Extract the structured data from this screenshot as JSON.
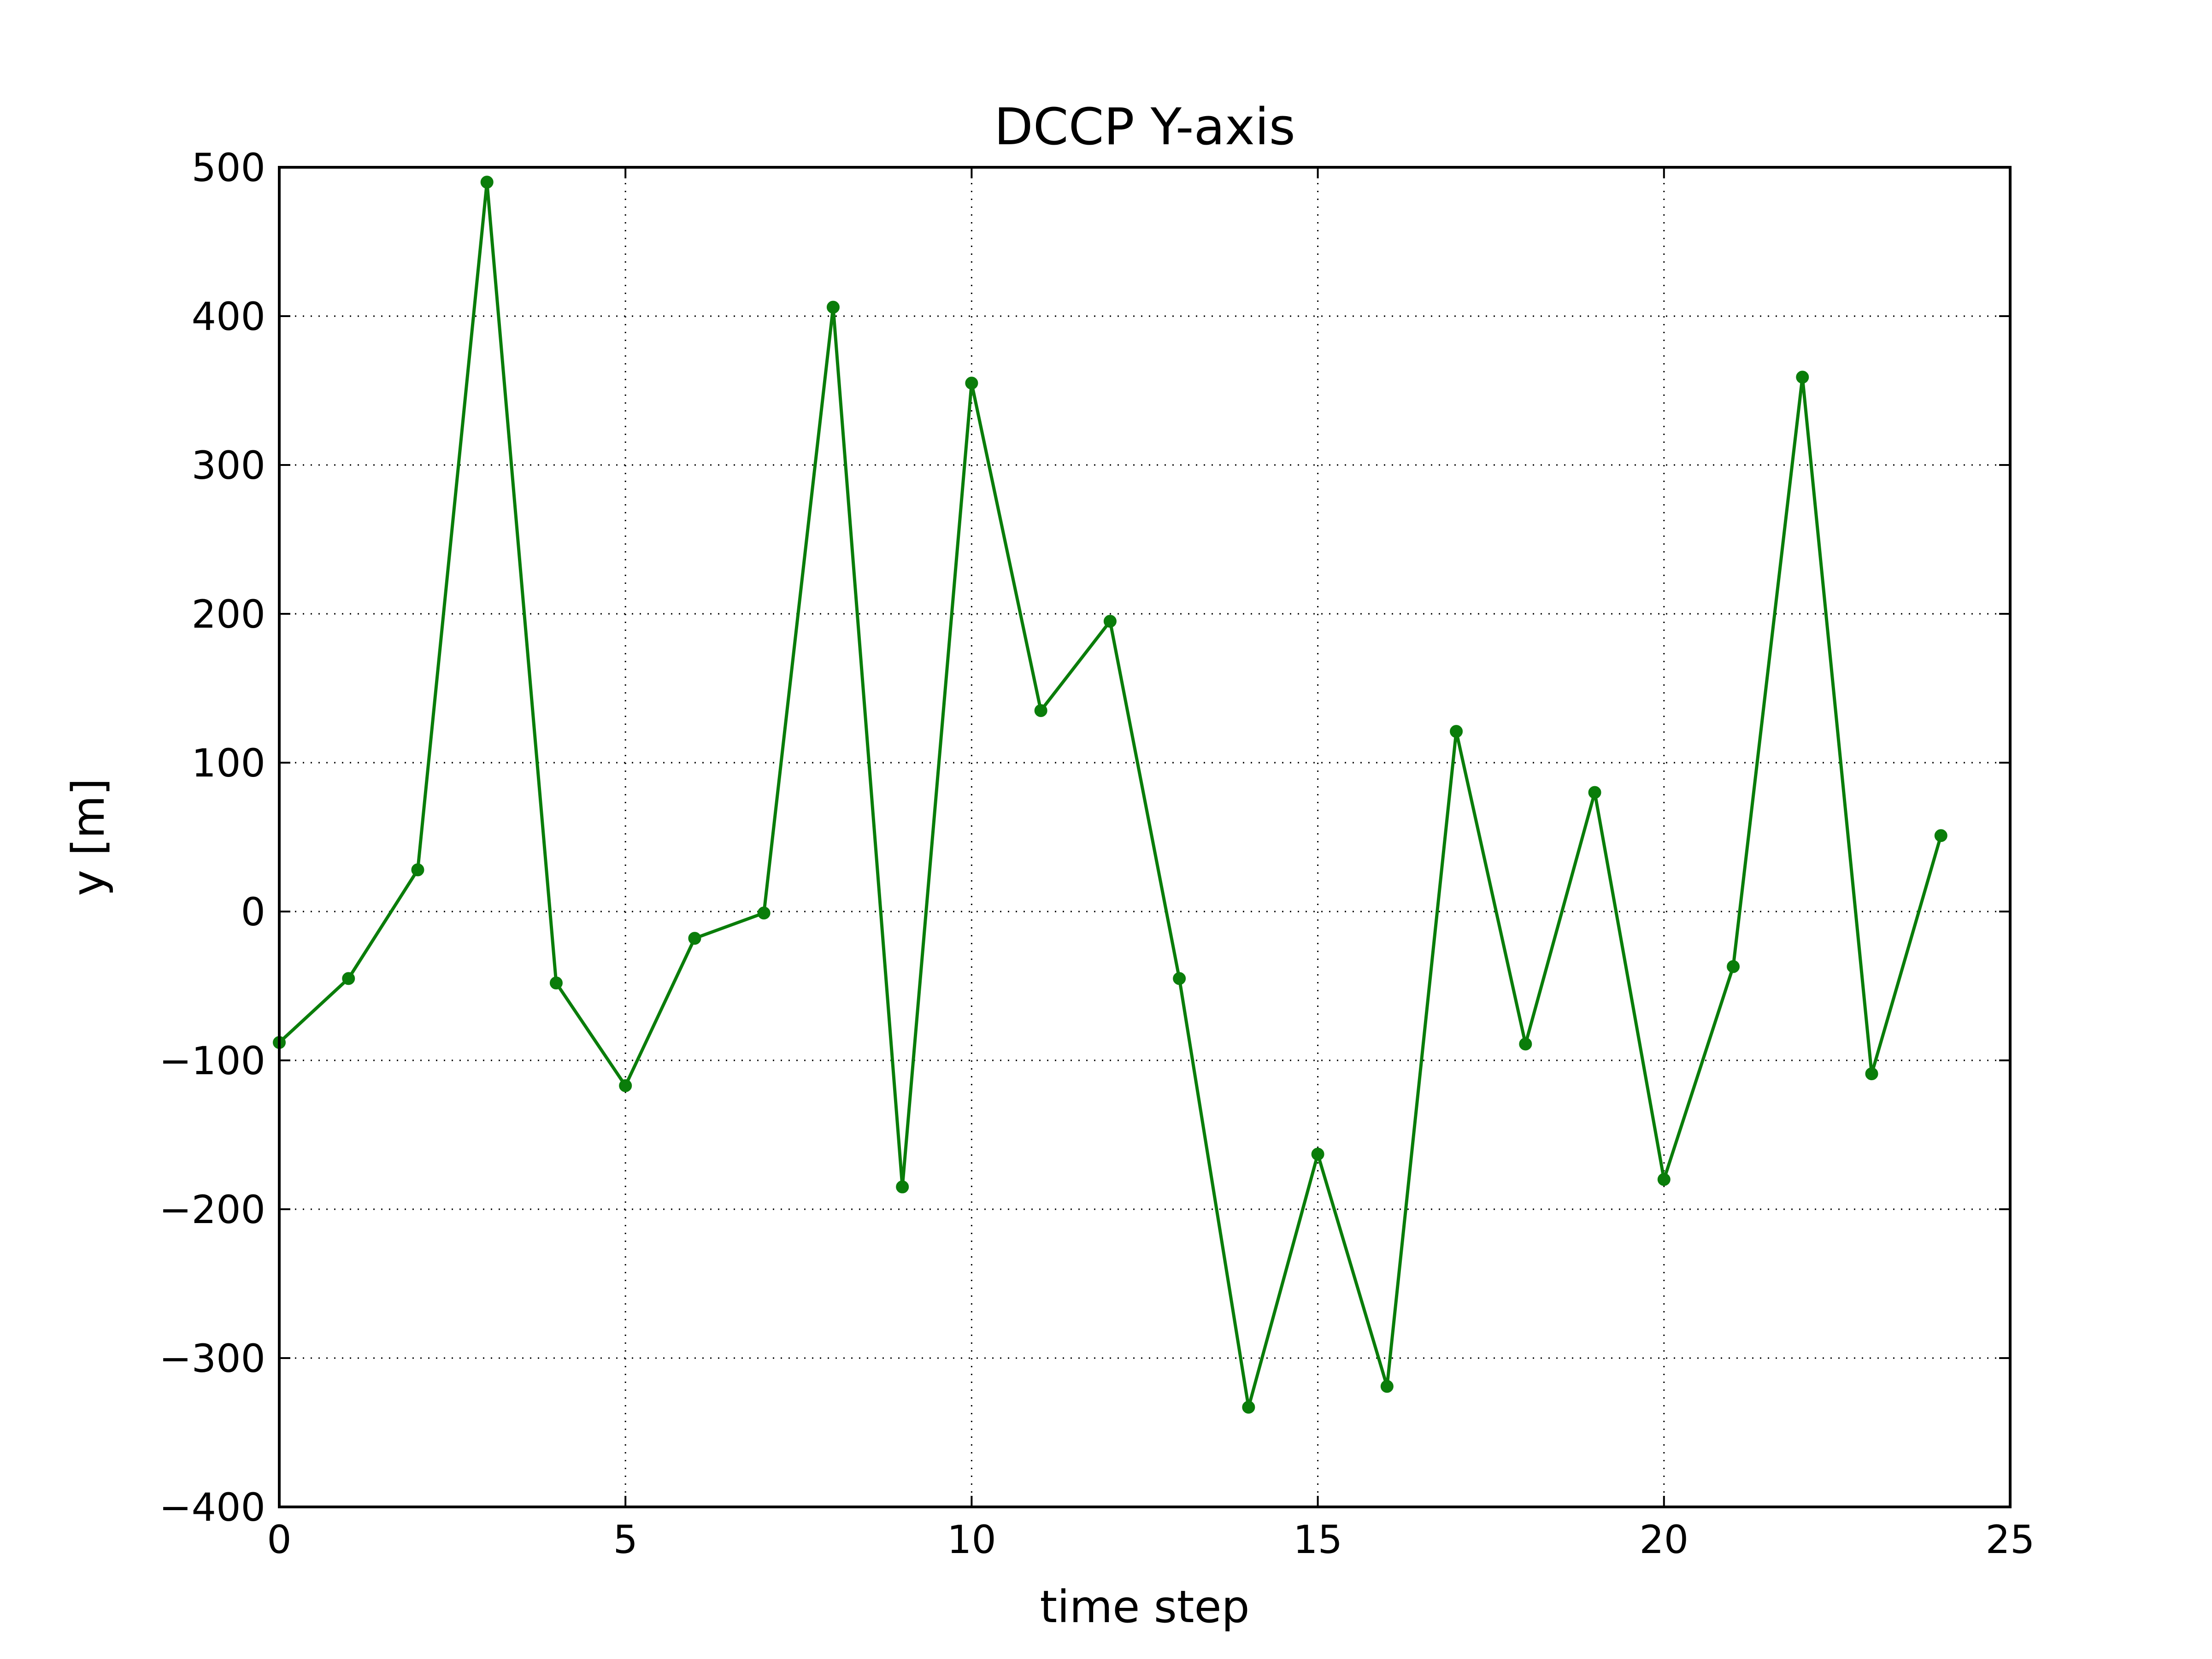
{
  "chart_data": {
    "type": "line",
    "title": "DCCP Y-axis",
    "xlabel": "time step",
    "ylabel": "y [m]",
    "xlim": [
      0,
      25
    ],
    "ylim": [
      -400,
      500
    ],
    "x_ticks": [
      0,
      5,
      10,
      15,
      20,
      25
    ],
    "x_tick_labels": [
      "0",
      "5",
      "10",
      "15",
      "20",
      "25"
    ],
    "y_ticks": [
      -400,
      -300,
      -200,
      -100,
      0,
      100,
      200,
      300,
      400,
      500
    ],
    "y_tick_labels": [
      "−400",
      "−300",
      "−200",
      "−100",
      "0",
      "100",
      "200",
      "300",
      "400",
      "500"
    ],
    "grid": true,
    "grid_style": "dotted",
    "series": [
      {
        "color": "#0a7d0a",
        "marker": "circle",
        "x": [
          0,
          1,
          2,
          3,
          4,
          5,
          6,
          7,
          8,
          9,
          10,
          11,
          12,
          13,
          14,
          15,
          16,
          17,
          18,
          19,
          20,
          21,
          22,
          23,
          24
        ],
        "y": [
          -88,
          -45,
          28,
          490,
          -48,
          -117,
          -18,
          -1,
          406,
          -185,
          355,
          135,
          195,
          -45,
          -333,
          -163,
          -319,
          121,
          -89,
          80,
          -180,
          -37,
          359,
          -109,
          51
        ]
      }
    ]
  }
}
